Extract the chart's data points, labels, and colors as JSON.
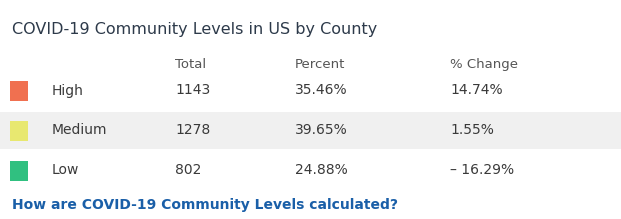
{
  "title": "COVID-19 Community Levels in US by County",
  "title_color": "#2d3a4a",
  "title_fontsize": 11.5,
  "title_fontweight": "normal",
  "header_labels": [
    "Total",
    "Percent",
    "% Change"
  ],
  "header_color": "#555555",
  "header_fontsize": 9.5,
  "rows": [
    {
      "label": "High",
      "swatch_color": "#F07050",
      "total": "1143",
      "percent": "35.46%",
      "change": "14.74%",
      "bg": "#ffffff"
    },
    {
      "label": "Medium",
      "swatch_color": "#E8E870",
      "total": "1278",
      "percent": "39.65%",
      "change": "1.55%",
      "bg": "#f0f0f0"
    },
    {
      "label": "Low",
      "swatch_color": "#30C080",
      "total": "802",
      "percent": "24.88%",
      "change": "– 16.29%",
      "bg": "#ffffff"
    }
  ],
  "data_color": "#3a3a3a",
  "data_fontsize": 10,
  "link_text": "How are COVID-19 Community Levels calculated?",
  "link_color": "#1a5fa8",
  "link_fontsize": 10,
  "background_color": "#ffffff",
  "fig_width": 6.21,
  "fig_height": 2.19,
  "dpi": 100
}
